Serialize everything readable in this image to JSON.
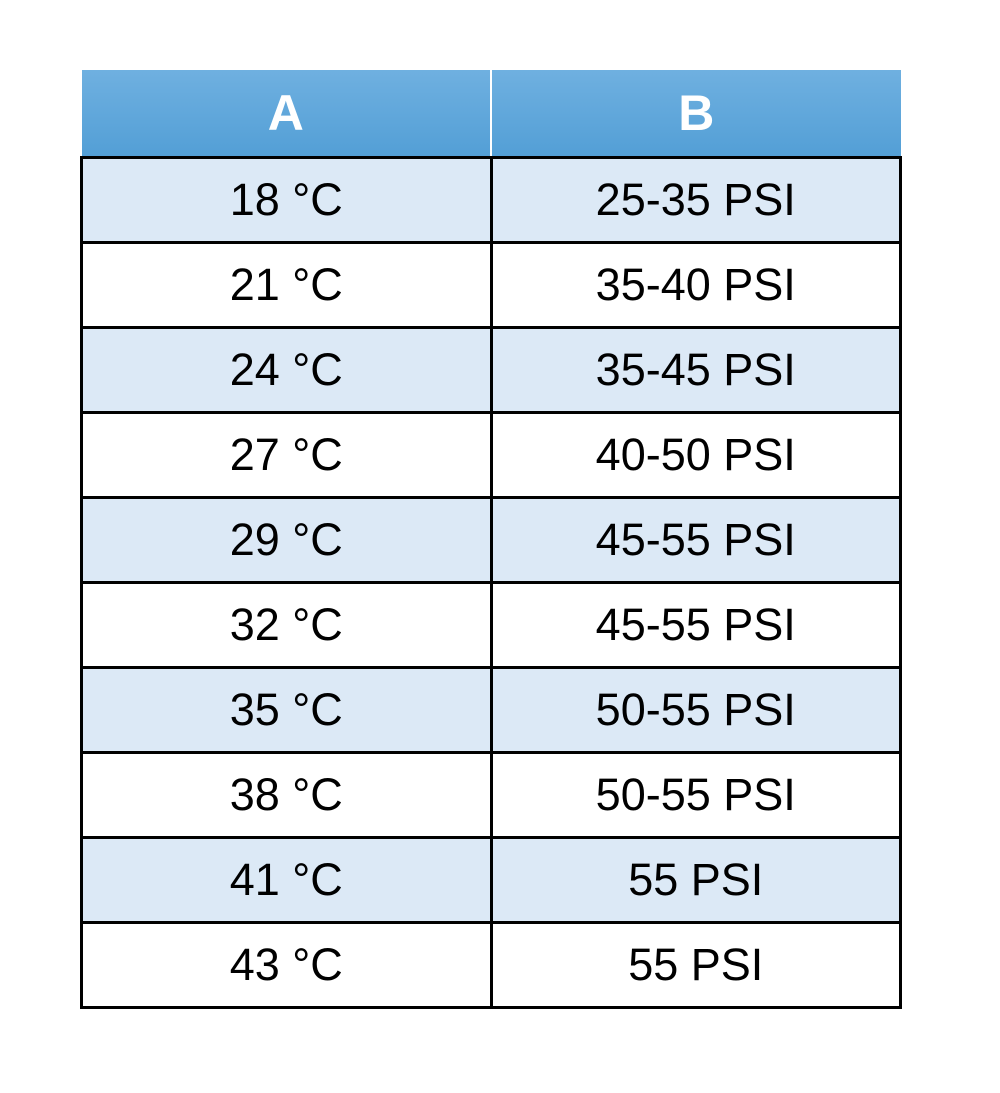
{
  "chart_data": {
    "type": "table",
    "columns": [
      "A",
      "B"
    ],
    "rows": [
      [
        "18 °C",
        "25-35 PSI"
      ],
      [
        "21 °C",
        "35-40 PSI"
      ],
      [
        "24 °C",
        "35-45 PSI"
      ],
      [
        "27 °C",
        "40-50 PSI"
      ],
      [
        "29 °C",
        "45-55 PSI"
      ],
      [
        "32 °C",
        "45-55 PSI"
      ],
      [
        "35 °C",
        "50-55 PSI"
      ],
      [
        "38 °C",
        "50-55 PSI"
      ],
      [
        "41 °C",
        "55 PSI"
      ],
      [
        "43 °C",
        "55 PSI"
      ]
    ],
    "layout": {
      "header_row": true,
      "zebra_striping": true,
      "grid": true
    }
  },
  "style": {
    "header_bg": "#539FD6",
    "header_bg_light": "#6FB0E0",
    "header_text": "#FFFFFF",
    "row_bg": "#FFFFFF",
    "row_alt_bg": "#DCE9F6",
    "border_color": "#000000",
    "text_color": "#000000"
  }
}
